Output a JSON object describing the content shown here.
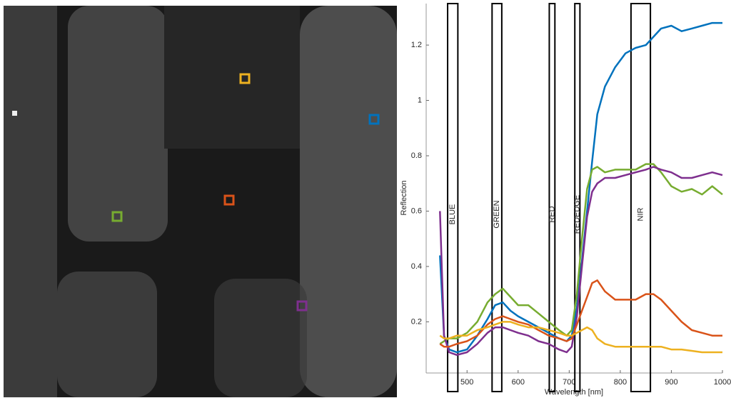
{
  "chart_data": {
    "type": "line",
    "x_label": "Wavelength [nm]",
    "y_label": "Reflection",
    "xlim": [
      420,
      1000
    ],
    "ylim": [
      0.015,
      1.35
    ],
    "xticks": [
      500,
      600,
      700,
      800,
      900,
      1000
    ],
    "yticks": [
      0.2,
      0.4,
      0.6,
      0.8,
      1,
      1.2
    ],
    "bands": [
      {
        "label": "BLUE",
        "range": [
          462,
          482
        ]
      },
      {
        "label": "GREEN",
        "range": [
          549,
          568
        ]
      },
      {
        "label": "RED",
        "range": [
          661,
          672
        ]
      },
      {
        "label": "REDEDGE",
        "range": [
          711,
          721
        ]
      },
      {
        "label": "NIR",
        "range": [
          821,
          859
        ]
      }
    ],
    "x": [
      447,
      455,
      465,
      480,
      500,
      520,
      540,
      555,
      570,
      585,
      600,
      620,
      640,
      660,
      680,
      695,
      705,
      715,
      725,
      735,
      745,
      755,
      770,
      790,
      810,
      830,
      850,
      865,
      880,
      900,
      920,
      940,
      960,
      980,
      1000
    ],
    "series": [
      {
        "color": "#0072bd",
        "values": [
          0.44,
          0.15,
          0.1,
          0.09,
          0.1,
          0.15,
          0.21,
          0.26,
          0.27,
          0.24,
          0.22,
          0.2,
          0.18,
          0.16,
          0.14,
          0.13,
          0.15,
          0.25,
          0.42,
          0.6,
          0.78,
          0.95,
          1.05,
          1.12,
          1.17,
          1.19,
          1.2,
          1.23,
          1.26,
          1.27,
          1.25,
          1.26,
          1.27,
          1.28,
          1.28
        ]
      },
      {
        "color": "#77ac30",
        "values": [
          0.12,
          0.13,
          0.14,
          0.14,
          0.16,
          0.2,
          0.27,
          0.3,
          0.32,
          0.29,
          0.26,
          0.26,
          0.23,
          0.2,
          0.17,
          0.15,
          0.17,
          0.3,
          0.5,
          0.68,
          0.75,
          0.76,
          0.74,
          0.75,
          0.75,
          0.75,
          0.77,
          0.77,
          0.74,
          0.69,
          0.67,
          0.68,
          0.66,
          0.69,
          0.66
        ]
      },
      {
        "color": "#7e2f8e",
        "values": [
          0.6,
          0.15,
          0.09,
          0.08,
          0.09,
          0.12,
          0.16,
          0.18,
          0.18,
          0.17,
          0.16,
          0.15,
          0.13,
          0.12,
          0.1,
          0.09,
          0.11,
          0.22,
          0.4,
          0.58,
          0.67,
          0.7,
          0.72,
          0.72,
          0.73,
          0.74,
          0.75,
          0.76,
          0.75,
          0.74,
          0.72,
          0.72,
          0.73,
          0.74,
          0.73
        ]
      },
      {
        "color": "#d95319",
        "values": [
          0.12,
          0.11,
          0.11,
          0.12,
          0.13,
          0.15,
          0.19,
          0.21,
          0.22,
          0.21,
          0.2,
          0.19,
          0.17,
          0.15,
          0.14,
          0.13,
          0.14,
          0.19,
          0.24,
          0.29,
          0.34,
          0.35,
          0.31,
          0.28,
          0.28,
          0.28,
          0.3,
          0.3,
          0.28,
          0.24,
          0.2,
          0.17,
          0.16,
          0.15,
          0.15
        ]
      },
      {
        "color": "#edb120",
        "values": [
          0.15,
          0.14,
          0.14,
          0.15,
          0.15,
          0.17,
          0.18,
          0.19,
          0.2,
          0.2,
          0.19,
          0.18,
          0.18,
          0.17,
          0.16,
          0.15,
          0.15,
          0.16,
          0.17,
          0.18,
          0.17,
          0.14,
          0.12,
          0.11,
          0.11,
          0.11,
          0.11,
          0.11,
          0.11,
          0.1,
          0.1,
          0.095,
          0.09,
          0.09,
          0.09
        ]
      }
    ]
  }
}
